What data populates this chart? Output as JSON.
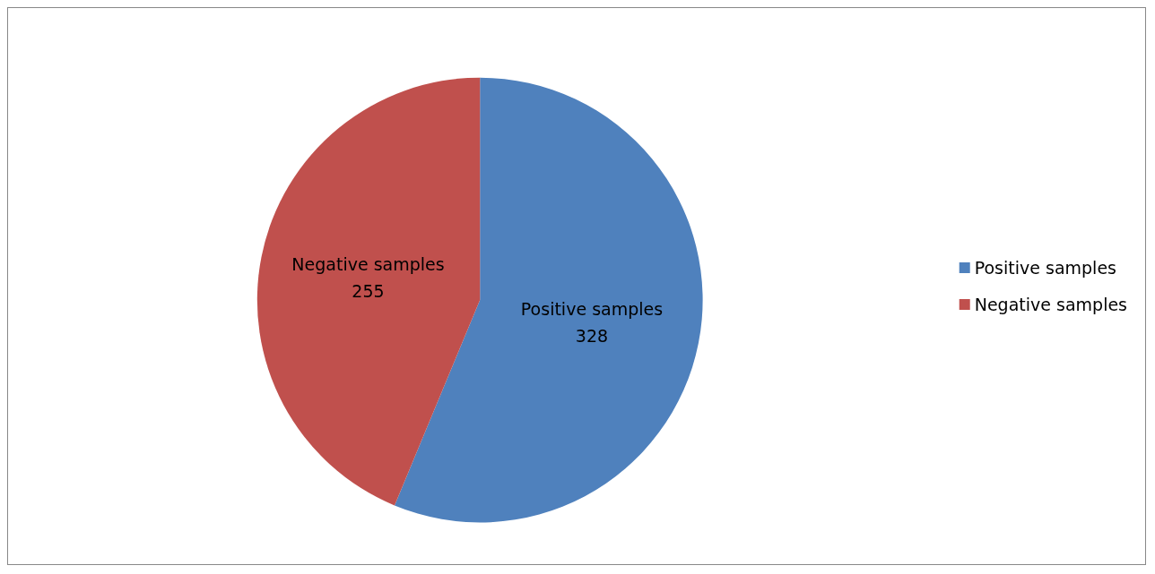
{
  "chart_data": {
    "type": "pie",
    "categories": [
      "Positive samples",
      "Negative samples"
    ],
    "values": [
      328,
      255
    ],
    "colors": [
      "#4f81bd",
      "#c0504d"
    ],
    "data_labels": true,
    "legend": "right"
  }
}
